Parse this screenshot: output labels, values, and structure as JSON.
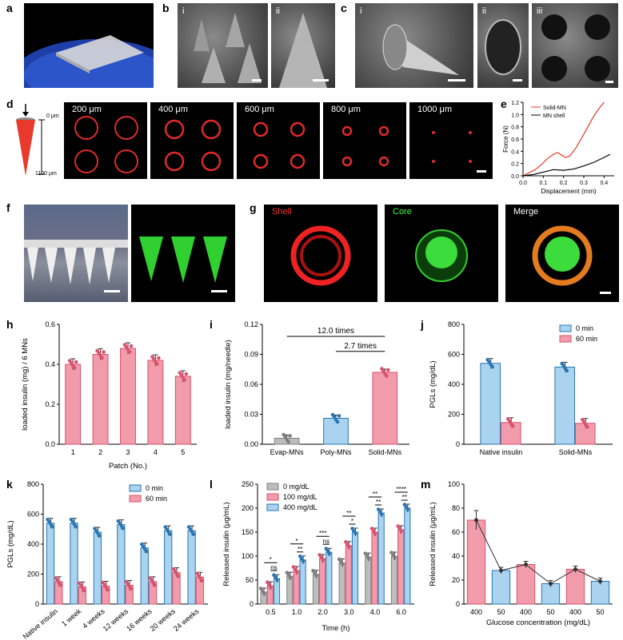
{
  "panels": {
    "a": "a",
    "b": "b",
    "c": "c",
    "d": "d",
    "e": "e",
    "f": "f",
    "g": "g",
    "h": "h",
    "i": "i",
    "j": "j",
    "k": "k",
    "l": "l",
    "m": "m"
  },
  "subpanels": {
    "i": "i",
    "ii": "ii",
    "iii": "iii"
  },
  "d_depths": [
    "200 μm",
    "400 μm",
    "600 μm",
    "800 μm",
    "1000 μm"
  ],
  "d_axis": {
    "top": "0 μm",
    "bottom": "1100 μm"
  },
  "g_labels": {
    "shell": "Shell",
    "core": "Core",
    "merge": "Merge"
  },
  "colors": {
    "pink": "#f29bab",
    "pink_edge": "#d9536f",
    "blue": "#a9d3ee",
    "blue_edge": "#2b76b3",
    "gray": "#bdbdbd",
    "gray_edge": "#7f7f7f",
    "red": "#e8392c"
  },
  "chart_data": [
    {
      "panel": "e",
      "type": "line",
      "xlabel": "Displacement (mm)",
      "ylabel": "Force (N)",
      "xlim": [
        0,
        0.45
      ],
      "ylim": [
        0,
        1.2
      ],
      "xticks": [
        "0.0",
        "0.1",
        "0.2",
        "0.3",
        "0.4"
      ],
      "yticks": [
        "0.0",
        "0.2",
        "0.4",
        "0.6",
        "0.8",
        "1.0",
        "1.2"
      ],
      "series": [
        {
          "name": "Solid-MN",
          "x": [
            0,
            0.03,
            0.06,
            0.09,
            0.12,
            0.15,
            0.17,
            0.19,
            0.21,
            0.23,
            0.26,
            0.29,
            0.32,
            0.35,
            0.38,
            0.4
          ],
          "y": [
            0,
            0.05,
            0.1,
            0.18,
            0.28,
            0.35,
            0.38,
            0.34,
            0.3,
            0.32,
            0.45,
            0.62,
            0.8,
            0.98,
            1.12,
            1.2
          ]
        },
        {
          "name": "MN shell",
          "x": [
            0,
            0.05,
            0.1,
            0.15,
            0.2,
            0.25,
            0.3,
            0.35,
            0.4,
            0.43
          ],
          "y": [
            0,
            0.02,
            0.06,
            0.1,
            0.09,
            0.11,
            0.16,
            0.22,
            0.3,
            0.35
          ]
        }
      ]
    },
    {
      "panel": "h",
      "type": "bar",
      "ylabel": "loaded insulin (mg) / 6 MNs",
      "xlabel": "Patch (No.)",
      "categories": [
        "1",
        "2",
        "3",
        "4",
        "5"
      ],
      "values": [
        0.4,
        0.45,
        0.48,
        0.42,
        0.34
      ],
      "ylim": [
        0,
        0.6
      ],
      "yticks": [
        "0.0",
        "0.2",
        "0.4",
        "0.6"
      ]
    },
    {
      "panel": "i",
      "type": "bar",
      "ylabel": "loaded insulin (mg/needle)",
      "categories": [
        "Evap-MNs",
        "Poly-MNs",
        "Solid-MNs"
      ],
      "values": [
        0.006,
        0.026,
        0.072
      ],
      "ylim": [
        0,
        0.12
      ],
      "yticks": [
        "0.00",
        "0.03",
        "0.06",
        "0.09",
        "0.12"
      ],
      "annotations": [
        "12.0 times",
        "2.7 times"
      ]
    },
    {
      "panel": "j",
      "type": "bar",
      "ylabel": "PGLs (mg/dL)",
      "categories": [
        "Native insulin",
        "Solid-MNs"
      ],
      "series": [
        {
          "name": "0 min",
          "values": [
            540,
            515
          ]
        },
        {
          "name": "60 min",
          "values": [
            145,
            140
          ]
        }
      ],
      "ylim": [
        0,
        800
      ],
      "yticks": [
        "0",
        "200",
        "400",
        "600",
        "800"
      ]
    },
    {
      "panel": "k",
      "type": "bar",
      "ylabel": "PGLs (mg/dL)",
      "categories": [
        "Native insulin",
        "1 week",
        "4 weeks",
        "12 weeks",
        "16 weeks",
        "20 weeks",
        "24 weeks"
      ],
      "series": [
        {
          "name": "0 min",
          "values": [
            540,
            540,
            480,
            530,
            375,
            490,
            490
          ]
        },
        {
          "name": "60 min",
          "values": [
            150,
            115,
            120,
            125,
            150,
            210,
            180
          ]
        }
      ],
      "ylim": [
        0,
        800
      ],
      "yticks": [
        "0",
        "200",
        "400",
        "600",
        "800"
      ]
    },
    {
      "panel": "l",
      "type": "bar",
      "xlabel": "Time (h)",
      "ylabel": "Released insulin (μg/mL)",
      "categories": [
        "0.5",
        "1.0",
        "2.0",
        "3.0",
        "4.0",
        "6.0"
      ],
      "series": [
        {
          "name": "0 mg/dL",
          "values": [
            25,
            58,
            62,
            86,
            98,
            100
          ]
        },
        {
          "name": "100 mg/dL",
          "values": [
            38,
            70,
            95,
            122,
            150,
            155
          ]
        },
        {
          "name": "400 mg/dL",
          "values": [
            53,
            92,
            108,
            150,
            190,
            200
          ]
        }
      ],
      "ylim": [
        0,
        250
      ],
      "yticks": [
        "0",
        "50",
        "100",
        "150",
        "200",
        "250"
      ],
      "significance": [
        "*",
        "ns",
        "*",
        "**",
        "***",
        "ns",
        "**",
        "*",
        "**",
        "**",
        "****",
        "**"
      ]
    },
    {
      "panel": "m",
      "type": "bar",
      "xlabel": "Glucose concentration (mg/dL)",
      "ylabel": "Released insulin (μg/mL)",
      "categories": [
        "400",
        "50",
        "400",
        "50",
        "400",
        "50"
      ],
      "values": [
        70,
        28,
        33,
        17,
        29,
        19
      ],
      "ylim": [
        0,
        100
      ],
      "yticks": [
        "0",
        "20",
        "40",
        "60",
        "80",
        "100"
      ]
    }
  ]
}
